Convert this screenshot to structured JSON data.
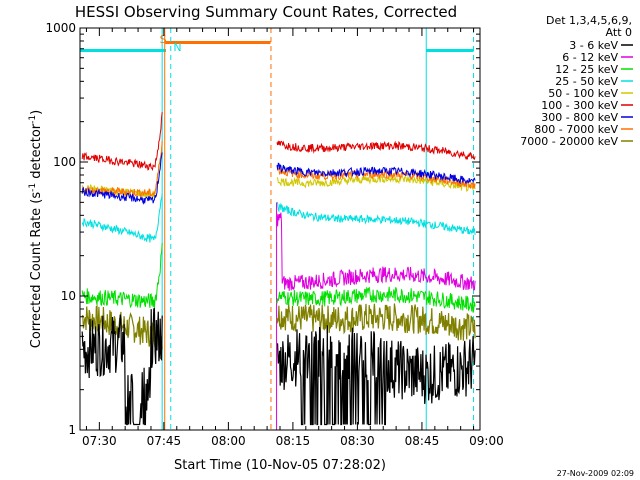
{
  "chart_data": {
    "type": "line",
    "title": "HESSI Observing Summary Count Rates, Corrected",
    "xlabel": "Start Time (10-Nov-05 07:28:02)",
    "ylabel_main": "Corrected Count Rate (s",
    "ylabel_sup1": "-1",
    "ylabel_mid": " detector",
    "ylabel_sup2": "-1",
    "ylabel_end": ")",
    "yscale": "log",
    "ylim": [
      1,
      1000
    ],
    "xlim_minutes": [
      25.5,
      118.5
    ],
    "x_ticks": [
      {
        "label": "07:30",
        "m": 30
      },
      {
        "label": "07:45",
        "m": 45
      },
      {
        "label": "08:00",
        "m": 60
      },
      {
        "label": "08:15",
        "m": 75
      },
      {
        "label": "08:30",
        "m": 90
      },
      {
        "label": "08:45",
        "m": 105
      },
      {
        "label": "09:00",
        "m": 120
      }
    ],
    "y_ticks": [
      {
        "label": "1",
        "v": 1
      },
      {
        "label": "10",
        "v": 10
      },
      {
        "label": "100",
        "v": 100
      },
      {
        "label": "1000",
        "v": 1000
      }
    ],
    "legend_header": [
      "Det 1,3,4,5,6,9,",
      "Att 0"
    ],
    "legend_placement": "right",
    "series": [
      {
        "name": "3 - 6 keV",
        "color": "#000000",
        "before": [
          4,
          5
        ],
        "after": [
          3.5,
          3
        ]
      },
      {
        "name": "6 - 12 keV",
        "color": "#e000e0",
        "before": null,
        "after": [
          14,
          13
        ]
      },
      {
        "name": "12 - 25 keV",
        "color": "#00e000",
        "before": [
          10,
          9
        ],
        "after": [
          11,
          9
        ]
      },
      {
        "name": "25 - 50 keV",
        "color": "#00e0e0",
        "before": [
          36,
          25
        ],
        "after": [
          50,
          31
        ]
      },
      {
        "name": "50 - 100 keV",
        "color": "#d0c800",
        "before": [
          64,
          56
        ],
        "after": [
          80,
          66
        ]
      },
      {
        "name": "100 - 300 keV",
        "color": "#e00000",
        "before": [
          110,
          90
        ],
        "after": [
          150,
          115
        ]
      },
      {
        "name": "300 - 800 keV",
        "color": "#0000e0",
        "before": [
          60,
          50
        ],
        "after": [
          100,
          74
        ]
      },
      {
        "name": "800 - 7000 keV",
        "color": "#ff7000",
        "before": [
          62,
          58
        ],
        "after": [
          95,
          70
        ]
      },
      {
        "name": "7000 - 20000 keV",
        "color": "#808000",
        "before": [
          7,
          5
        ],
        "after": [
          8,
          6
        ]
      }
    ],
    "annotations": [
      {
        "label": "S",
        "color": "#ff7000"
      },
      {
        "label": "N",
        "color": "#00e0e0"
      }
    ]
  },
  "footer": {
    "date": "27-Nov-2009 02:09"
  }
}
